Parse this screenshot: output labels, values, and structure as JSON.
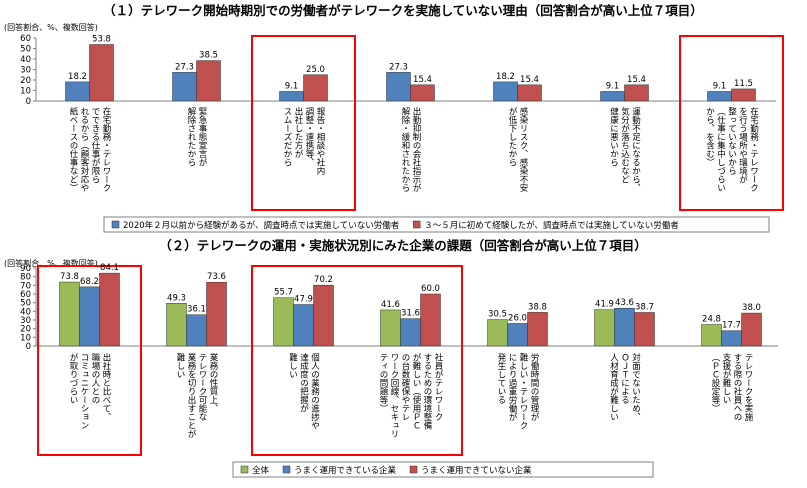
{
  "chart_data": [
    {
      "type": "bar",
      "title": "（１）テレワーク開始時期別での労働者がテレワークを実施していない理由（回答割合が高い上位７項目）",
      "unit_note": "(回答割合、%、複数回答)",
      "ylim": [
        0,
        60
      ],
      "yticks": [
        0,
        10,
        20,
        30,
        40,
        50,
        60
      ],
      "grid": false,
      "legend_position": "bottom",
      "categories": [
        "在宅勤務・テレワークでできる仕事が限られるから（顧客対応や紙ベースの仕事など）",
        "緊急事態宣言が解除されたから",
        "報告・相談や社内調整・連携等、出社した方がスムーズだから",
        "出勤抑制の会社指示が解除・緩和されたから",
        "感染リスク、感染不安が低下したから",
        "運動不足になるから、気分が落ち込むなど健康に悪いから",
        "在宅勤務・テレワークを行う場所や環境が整っていないから（仕事に集中しづらいから、を含む）"
      ],
      "category_lines": [
        [
          "在宅勤務・テレワーク",
          "でできる仕事が限ら",
          "れるから（顧客対応や",
          "紙ベースの仕事など）"
        ],
        [
          "緊急事態宣言が",
          "解除されたから"
        ],
        [
          "報告・相談や社内",
          "調整・連携等、",
          "出社した方が",
          "スムーズだから"
        ],
        [
          "出勤抑制の会社指示が",
          "解除・緩和されたから"
        ],
        [
          "感染リスク、感染不安",
          "が低下したから"
        ],
        [
          "運動不足になるから、",
          "気分が落ち込むなど",
          "健康に悪いから"
        ],
        [
          "在宅勤務・テレワーク",
          "を行う場所や環境が",
          "整っていないから",
          "（仕事に集中しづらい",
          "から、を含む）"
        ]
      ],
      "series": [
        {
          "name": "2020年２月以前から経験があるが、調査時点では実施していない労働者",
          "color": "#4f81bd",
          "values": [
            18.2,
            27.3,
            9.1,
            27.3,
            18.2,
            9.1,
            9.1
          ]
        },
        {
          "name": "３～５月に初めて経験したが、調査時点では実施していない労働者",
          "color": "#c0504d",
          "values": [
            53.8,
            38.5,
            25.0,
            15.4,
            15.4,
            15.4,
            11.5
          ]
        }
      ],
      "highlighted_categories": [
        2,
        6
      ]
    },
    {
      "type": "bar",
      "title": "（２）テレワークの運用・実施状況別にみた企業の課題（回答割合が高い上位７項目）",
      "unit_note": "(回答割合、%、複数回答)",
      "ylim": [
        0,
        90
      ],
      "yticks": [
        0,
        10,
        20,
        30,
        40,
        50,
        60,
        70,
        80,
        90
      ],
      "grid": false,
      "legend_position": "bottom",
      "categories": [
        "出社時と比べて、職場の人とのコミュニケーションが取りづらい",
        "業務の性質上、テレワーク可能な業務を切り出すことが難しい",
        "個人の業務の進捗や達成度の把握が難しい",
        "社員がテレワークするための環境整備が難しい（使用PCの台数確保やテレワーク回線、セキュリティの問題等）",
        "労働時間の管理が難しい・テレワークにより過重労働が発生している",
        "対面でないため、OJTによる人材育成が難しい",
        "テレワークを実施する際の社員への支援が難しい（PC設定等）"
      ],
      "category_lines": [
        [
          "出社時と比べて、",
          "職場の人との",
          "コミュニケーション",
          "が取りづらい"
        ],
        [
          "業務の性質上、",
          "テレワーク可能な",
          "業務を切り出すことが",
          "難しい"
        ],
        [
          "個人の業務の進捗や",
          "達成度の把握が",
          "難しい"
        ],
        [
          "社員がテレワーク",
          "するための環境整備",
          "が難しい（使用ＰＣ",
          "の台数確保やテレ",
          "ワーク回線、セキュリ",
          "ティの問題等）"
        ],
        [
          "労働時間の管理が",
          "難しい・テレワーク",
          "により過重労働が",
          "発生している"
        ],
        [
          "対面でないため、",
          "ＯＪＴによる",
          "人材育成が難しい"
        ],
        [
          "テレワークを実施",
          "する際の社員への",
          "支援が難しい",
          "（ＰＣ設定等）"
        ]
      ],
      "series": [
        {
          "name": "全体",
          "color": "#9bbb59",
          "values": [
            73.8,
            49.3,
            55.7,
            41.6,
            30.5,
            41.9,
            24.8
          ]
        },
        {
          "name": "うまく運用できている企業",
          "color": "#4f81bd",
          "values": [
            68.2,
            36.1,
            47.9,
            31.6,
            26.0,
            43.6,
            17.7
          ]
        },
        {
          "name": "うまく運用できていない企業",
          "color": "#c0504d",
          "values": [
            84.1,
            73.6,
            70.2,
            60.0,
            38.8,
            38.7,
            38.0
          ]
        }
      ],
      "highlighted_categories": [
        0,
        2,
        3
      ]
    }
  ],
  "colors": {
    "highlight": "#ff0000",
    "axis": "#808080"
  }
}
